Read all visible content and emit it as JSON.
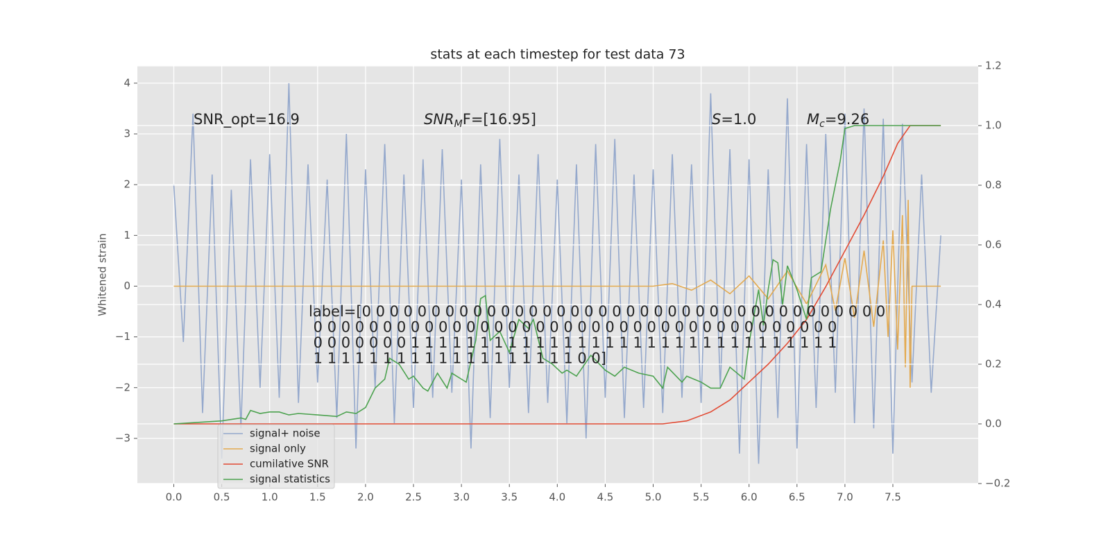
{
  "chart_data": {
    "type": "line",
    "title": "stats at each timestep for test data 73",
    "y_label": "Whitened strain",
    "annotations": {
      "snr_opt": "SNR_opt=16.9",
      "snr_mf": [
        "SNR",
        "M",
        "F=[16.95]"
      ],
      "s": [
        "S",
        "=1.0"
      ],
      "mc": [
        "M",
        "c",
        "=9.26"
      ]
    },
    "label_text": [
      "label=[0 0 0 0 0 0 0 0 0 0 0 0 0 0 0 0 0 0 0 0 0 0 0 0 0 0 0 0 0 0 0 0 0 0 0 0 0 0",
      " 0 0 0 0 0 0 0 0 0 0 0 0 0 0 0 0 0 0 0 0 0 0 0 0 0 0 0 0 0 0 0 0 0 0 0 0 0 0",
      " 0 0 0 0 0 0 0 1 1 1 1 1 1 1 1 1 1 1 1 1 1 1 1 1 1 1 1 1 1 1 1 1 1 1 1 1 1 1",
      " 1 1 1 1 1 1 1 1 1 1 1 1 1 1 1 1 1 1 1 0 0]"
    ],
    "xlim": [
      -0.38,
      8.39
    ],
    "ylim": [
      -3.89,
      4.34
    ],
    "y2lim": [
      -0.2,
      1.2
    ],
    "xticks": [
      {
        "value": 0,
        "label": "0.0"
      },
      {
        "value": 0.5,
        "label": "0.5"
      },
      {
        "value": 1,
        "label": "1.0"
      },
      {
        "value": 1.5,
        "label": "1.5"
      },
      {
        "value": 2,
        "label": "2.0"
      },
      {
        "value": 2.5,
        "label": "2.5"
      },
      {
        "value": 3,
        "label": "3.0"
      },
      {
        "value": 3.5,
        "label": "3.5"
      },
      {
        "value": 4,
        "label": "4.0"
      },
      {
        "value": 4.5,
        "label": "4.5"
      },
      {
        "value": 5,
        "label": "5.0"
      },
      {
        "value": 5.5,
        "label": "5.5"
      },
      {
        "value": 6,
        "label": "6.0"
      },
      {
        "value": 6.5,
        "label": "6.5"
      },
      {
        "value": 7,
        "label": "7.0"
      },
      {
        "value": 7.5,
        "label": "7.5"
      }
    ],
    "yticks": [
      {
        "value": -3,
        "label": "−3"
      },
      {
        "value": -2,
        "label": "−2"
      },
      {
        "value": -1,
        "label": "−1"
      },
      0,
      1,
      2,
      3,
      4
    ],
    "y2ticks": [
      {
        "value": -0.2,
        "label": "−0.2"
      },
      {
        "value": 0,
        "label": "0.0"
      },
      {
        "value": 0.2,
        "label": "0.2"
      },
      {
        "value": 0.4,
        "label": "0.4"
      },
      {
        "value": 0.6,
        "label": "0.6"
      },
      {
        "value": 0.8,
        "label": "0.8"
      },
      {
        "value": 1,
        "label": "1.0"
      },
      {
        "value": 1.2,
        "label": "1.2"
      }
    ],
    "grid": true,
    "legend": "lower left",
    "series": [
      {
        "name": "signal+ noise",
        "color": "#94a8cc",
        "x": [
          0,
          0.1,
          0.2,
          0.3,
          0.4,
          0.5,
          0.6,
          0.7,
          0.8,
          0.9,
          1.0,
          1.1,
          1.2,
          1.3,
          1.4,
          1.5,
          1.6,
          1.7,
          1.8,
          1.9,
          2.0,
          2.1,
          2.2,
          2.3,
          2.4,
          2.5,
          2.6,
          2.7,
          2.8,
          2.9,
          3.0,
          3.1,
          3.2,
          3.3,
          3.4,
          3.5,
          3.6,
          3.7,
          3.8,
          3.9,
          4.0,
          4.1,
          4.2,
          4.3,
          4.4,
          4.5,
          4.6,
          4.7,
          4.8,
          4.9,
          5.0,
          5.1,
          5.2,
          5.3,
          5.4,
          5.5,
          5.6,
          5.7,
          5.8,
          5.9,
          6.0,
          6.1,
          6.2,
          6.3,
          6.4,
          6.5,
          6.6,
          6.7,
          6.8,
          6.9,
          7.0,
          7.1,
          7.2,
          7.3,
          7.4,
          7.5,
          7.6,
          7.7,
          7.8,
          7.9,
          8.0
        ],
        "values": [
          2.0,
          -1.1,
          3.4,
          -2.5,
          2.2,
          -3.4,
          1.9,
          -2.8,
          2.5,
          -2.0,
          2.6,
          -2.2,
          4.0,
          -2.3,
          2.4,
          -1.9,
          2.1,
          -2.6,
          3.0,
          -3.2,
          2.3,
          -2.0,
          2.8,
          -2.7,
          2.2,
          -2.4,
          2.5,
          -2.2,
          2.7,
          -2.1,
          2.1,
          -3.2,
          2.4,
          -2.6,
          2.9,
          -2.0,
          2.2,
          -2.5,
          2.6,
          -2.3,
          2.1,
          -2.7,
          2.4,
          -3.0,
          2.8,
          -2.2,
          2.9,
          -2.6,
          2.2,
          -2.4,
          2.3,
          -2.5,
          2.6,
          -2.2,
          2.4,
          -2.3,
          3.8,
          -2.0,
          2.7,
          -3.3,
          2.5,
          -3.5,
          2.3,
          -2.6,
          3.7,
          -3.2,
          2.8,
          -2.4,
          3.0,
          -2.1,
          3.4,
          -2.7,
          3.5,
          -2.8,
          3.3,
          -3.3,
          3.2,
          -1.9,
          2.2,
          -2.1,
          1.0
        ]
      },
      {
        "name": "signal only",
        "color": "#e3a94e",
        "x": [
          0,
          5.0,
          5.2,
          5.4,
          5.6,
          5.8,
          6.0,
          6.2,
          6.4,
          6.6,
          6.8,
          6.9,
          7.0,
          7.1,
          7.2,
          7.3,
          7.4,
          7.45,
          7.5,
          7.55,
          7.6,
          7.63,
          7.66,
          7.68,
          7.7,
          8.0
        ],
        "values": [
          0,
          0,
          0.05,
          -0.08,
          0.12,
          -0.15,
          0.2,
          -0.25,
          0.3,
          -0.35,
          0.42,
          -0.48,
          0.55,
          -0.62,
          0.7,
          -0.8,
          0.9,
          -1.0,
          1.1,
          -1.25,
          1.4,
          -1.6,
          1.7,
          -2.0,
          0,
          0
        ]
      },
      {
        "name": "cumilative SNR",
        "color": "#e24a33",
        "axis": "y2",
        "x": [
          0,
          5.1,
          5.35,
          5.6,
          5.8,
          6.0,
          6.2,
          6.4,
          6.6,
          6.8,
          7.0,
          7.2,
          7.4,
          7.55,
          7.68,
          8.0
        ],
        "values": [
          0,
          0,
          0.01,
          0.04,
          0.08,
          0.14,
          0.2,
          0.27,
          0.35,
          0.46,
          0.58,
          0.7,
          0.83,
          0.94,
          1.0,
          1.0
        ]
      },
      {
        "name": "signal statistics",
        "color": "#4ca24f",
        "axis": "y2",
        "x": [
          0,
          0.5,
          0.7,
          0.75,
          0.8,
          0.9,
          1.0,
          1.1,
          1.2,
          1.3,
          1.5,
          1.7,
          1.8,
          1.9,
          2.0,
          2.1,
          2.2,
          2.25,
          2.35,
          2.45,
          2.5,
          2.6,
          2.65,
          2.75,
          2.85,
          2.9,
          3.0,
          3.05,
          3.15,
          3.2,
          3.25,
          3.3,
          3.4,
          3.5,
          3.6,
          3.7,
          3.75,
          3.85,
          3.95,
          4.05,
          4.1,
          4.2,
          4.35,
          4.5,
          4.6,
          4.7,
          4.85,
          5.0,
          5.1,
          5.15,
          5.3,
          5.35,
          5.5,
          5.6,
          5.7,
          5.8,
          5.95,
          6.0,
          6.1,
          6.15,
          6.2,
          6.25,
          6.3,
          6.35,
          6.4,
          6.5,
          6.6,
          6.65,
          6.75,
          6.85,
          6.95,
          7.0,
          7.1,
          8.0
        ],
        "values": [
          0,
          0.01,
          0.02,
          0.015,
          0.045,
          0.035,
          0.04,
          0.04,
          0.03,
          0.035,
          0.03,
          0.025,
          0.04,
          0.035,
          0.055,
          0.12,
          0.15,
          0.22,
          0.2,
          0.15,
          0.16,
          0.12,
          0.11,
          0.17,
          0.12,
          0.17,
          0.15,
          0.14,
          0.28,
          0.42,
          0.43,
          0.28,
          0.31,
          0.24,
          0.35,
          0.32,
          0.35,
          0.22,
          0.2,
          0.17,
          0.18,
          0.16,
          0.23,
          0.18,
          0.16,
          0.19,
          0.17,
          0.16,
          0.12,
          0.19,
          0.14,
          0.16,
          0.14,
          0.12,
          0.12,
          0.19,
          0.15,
          0.27,
          0.45,
          0.33,
          0.45,
          0.55,
          0.54,
          0.4,
          0.53,
          0.45,
          0.35,
          0.49,
          0.51,
          0.72,
          0.88,
          0.99,
          1.0,
          1.0
        ]
      }
    ]
  }
}
